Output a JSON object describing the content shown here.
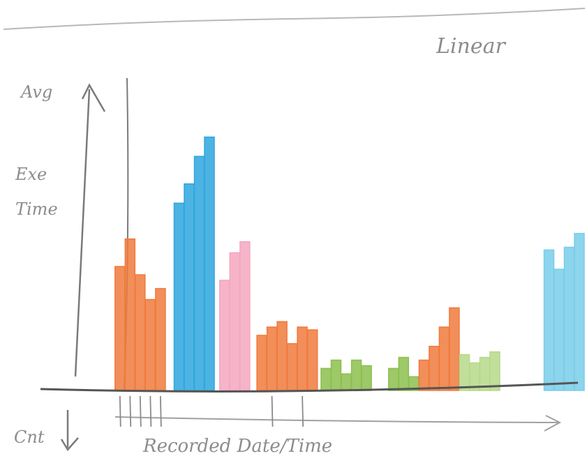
{
  "labels": {
    "top_right": "Linear",
    "y_axis": [
      "Avg",
      "Exe",
      "Time"
    ],
    "y_axis_lower": "Cnt",
    "x_axis": "Recorded Date/Time"
  },
  "colors": {
    "orange": "#f07a3c",
    "blue": "#2ea6dd",
    "light_blue": "#79cdea",
    "pink": "#f4a7c0",
    "green": "#8cbf4e",
    "light_green": "#b6d98a",
    "pencil": "#8c8c8c"
  },
  "chart_data": {
    "type": "bar",
    "title": "",
    "xlabel": "Recorded Date/Time",
    "ylabel": "Avg Exe Time",
    "y_scale": "linear",
    "bars": [
      {
        "x": 0.9,
        "v": 0.45,
        "c": "orange"
      },
      {
        "x": 1.5,
        "v": 0.55,
        "c": "orange"
      },
      {
        "x": 2.1,
        "v": 0.42,
        "c": "orange"
      },
      {
        "x": 2.7,
        "v": 0.33,
        "c": "orange"
      },
      {
        "x": 3.3,
        "v": 0.37,
        "c": "orange"
      },
      {
        "x": 4.4,
        "v": 0.68,
        "c": "blue"
      },
      {
        "x": 5.0,
        "v": 0.75,
        "c": "blue"
      },
      {
        "x": 5.6,
        "v": 0.85,
        "c": "blue"
      },
      {
        "x": 6.2,
        "v": 0.92,
        "c": "blue"
      },
      {
        "x": 7.1,
        "v": 0.4,
        "c": "pink"
      },
      {
        "x": 7.7,
        "v": 0.5,
        "c": "pink"
      },
      {
        "x": 8.3,
        "v": 0.54,
        "c": "pink"
      },
      {
        "x": 9.3,
        "v": 0.2,
        "c": "orange"
      },
      {
        "x": 9.9,
        "v": 0.23,
        "c": "orange"
      },
      {
        "x": 10.5,
        "v": 0.25,
        "c": "orange"
      },
      {
        "x": 11.1,
        "v": 0.17,
        "c": "orange"
      },
      {
        "x": 11.7,
        "v": 0.23,
        "c": "orange"
      },
      {
        "x": 12.3,
        "v": 0.22,
        "c": "orange"
      },
      {
        "x": 13.1,
        "v": 0.08,
        "c": "green"
      },
      {
        "x": 13.7,
        "v": 0.11,
        "c": "green"
      },
      {
        "x": 14.3,
        "v": 0.06,
        "c": "green"
      },
      {
        "x": 14.9,
        "v": 0.11,
        "c": "green"
      },
      {
        "x": 15.5,
        "v": 0.09,
        "c": "green"
      },
      {
        "x": 17.1,
        "v": 0.08,
        "c": "green"
      },
      {
        "x": 17.7,
        "v": 0.12,
        "c": "green"
      },
      {
        "x": 18.3,
        "v": 0.05,
        "c": "green"
      },
      {
        "x": 18.9,
        "v": 0.11,
        "c": "orange"
      },
      {
        "x": 19.5,
        "v": 0.16,
        "c": "orange"
      },
      {
        "x": 20.1,
        "v": 0.23,
        "c": "orange"
      },
      {
        "x": 20.7,
        "v": 0.3,
        "c": "orange"
      },
      {
        "x": 21.3,
        "v": 0.13,
        "c": "light_green"
      },
      {
        "x": 21.9,
        "v": 0.1,
        "c": "light_green"
      },
      {
        "x": 22.5,
        "v": 0.12,
        "c": "light_green"
      },
      {
        "x": 23.1,
        "v": 0.14,
        "c": "light_green"
      },
      {
        "x": 26.3,
        "v": 0.51,
        "c": "light_blue"
      },
      {
        "x": 26.9,
        "v": 0.44,
        "c": "light_blue"
      },
      {
        "x": 27.5,
        "v": 0.52,
        "c": "light_blue"
      },
      {
        "x": 28.1,
        "v": 0.57,
        "c": "light_blue"
      }
    ],
    "x_ticks": [
      0.9,
      1.5,
      2.1,
      2.7,
      3.3,
      9.9,
      11.7
    ]
  }
}
